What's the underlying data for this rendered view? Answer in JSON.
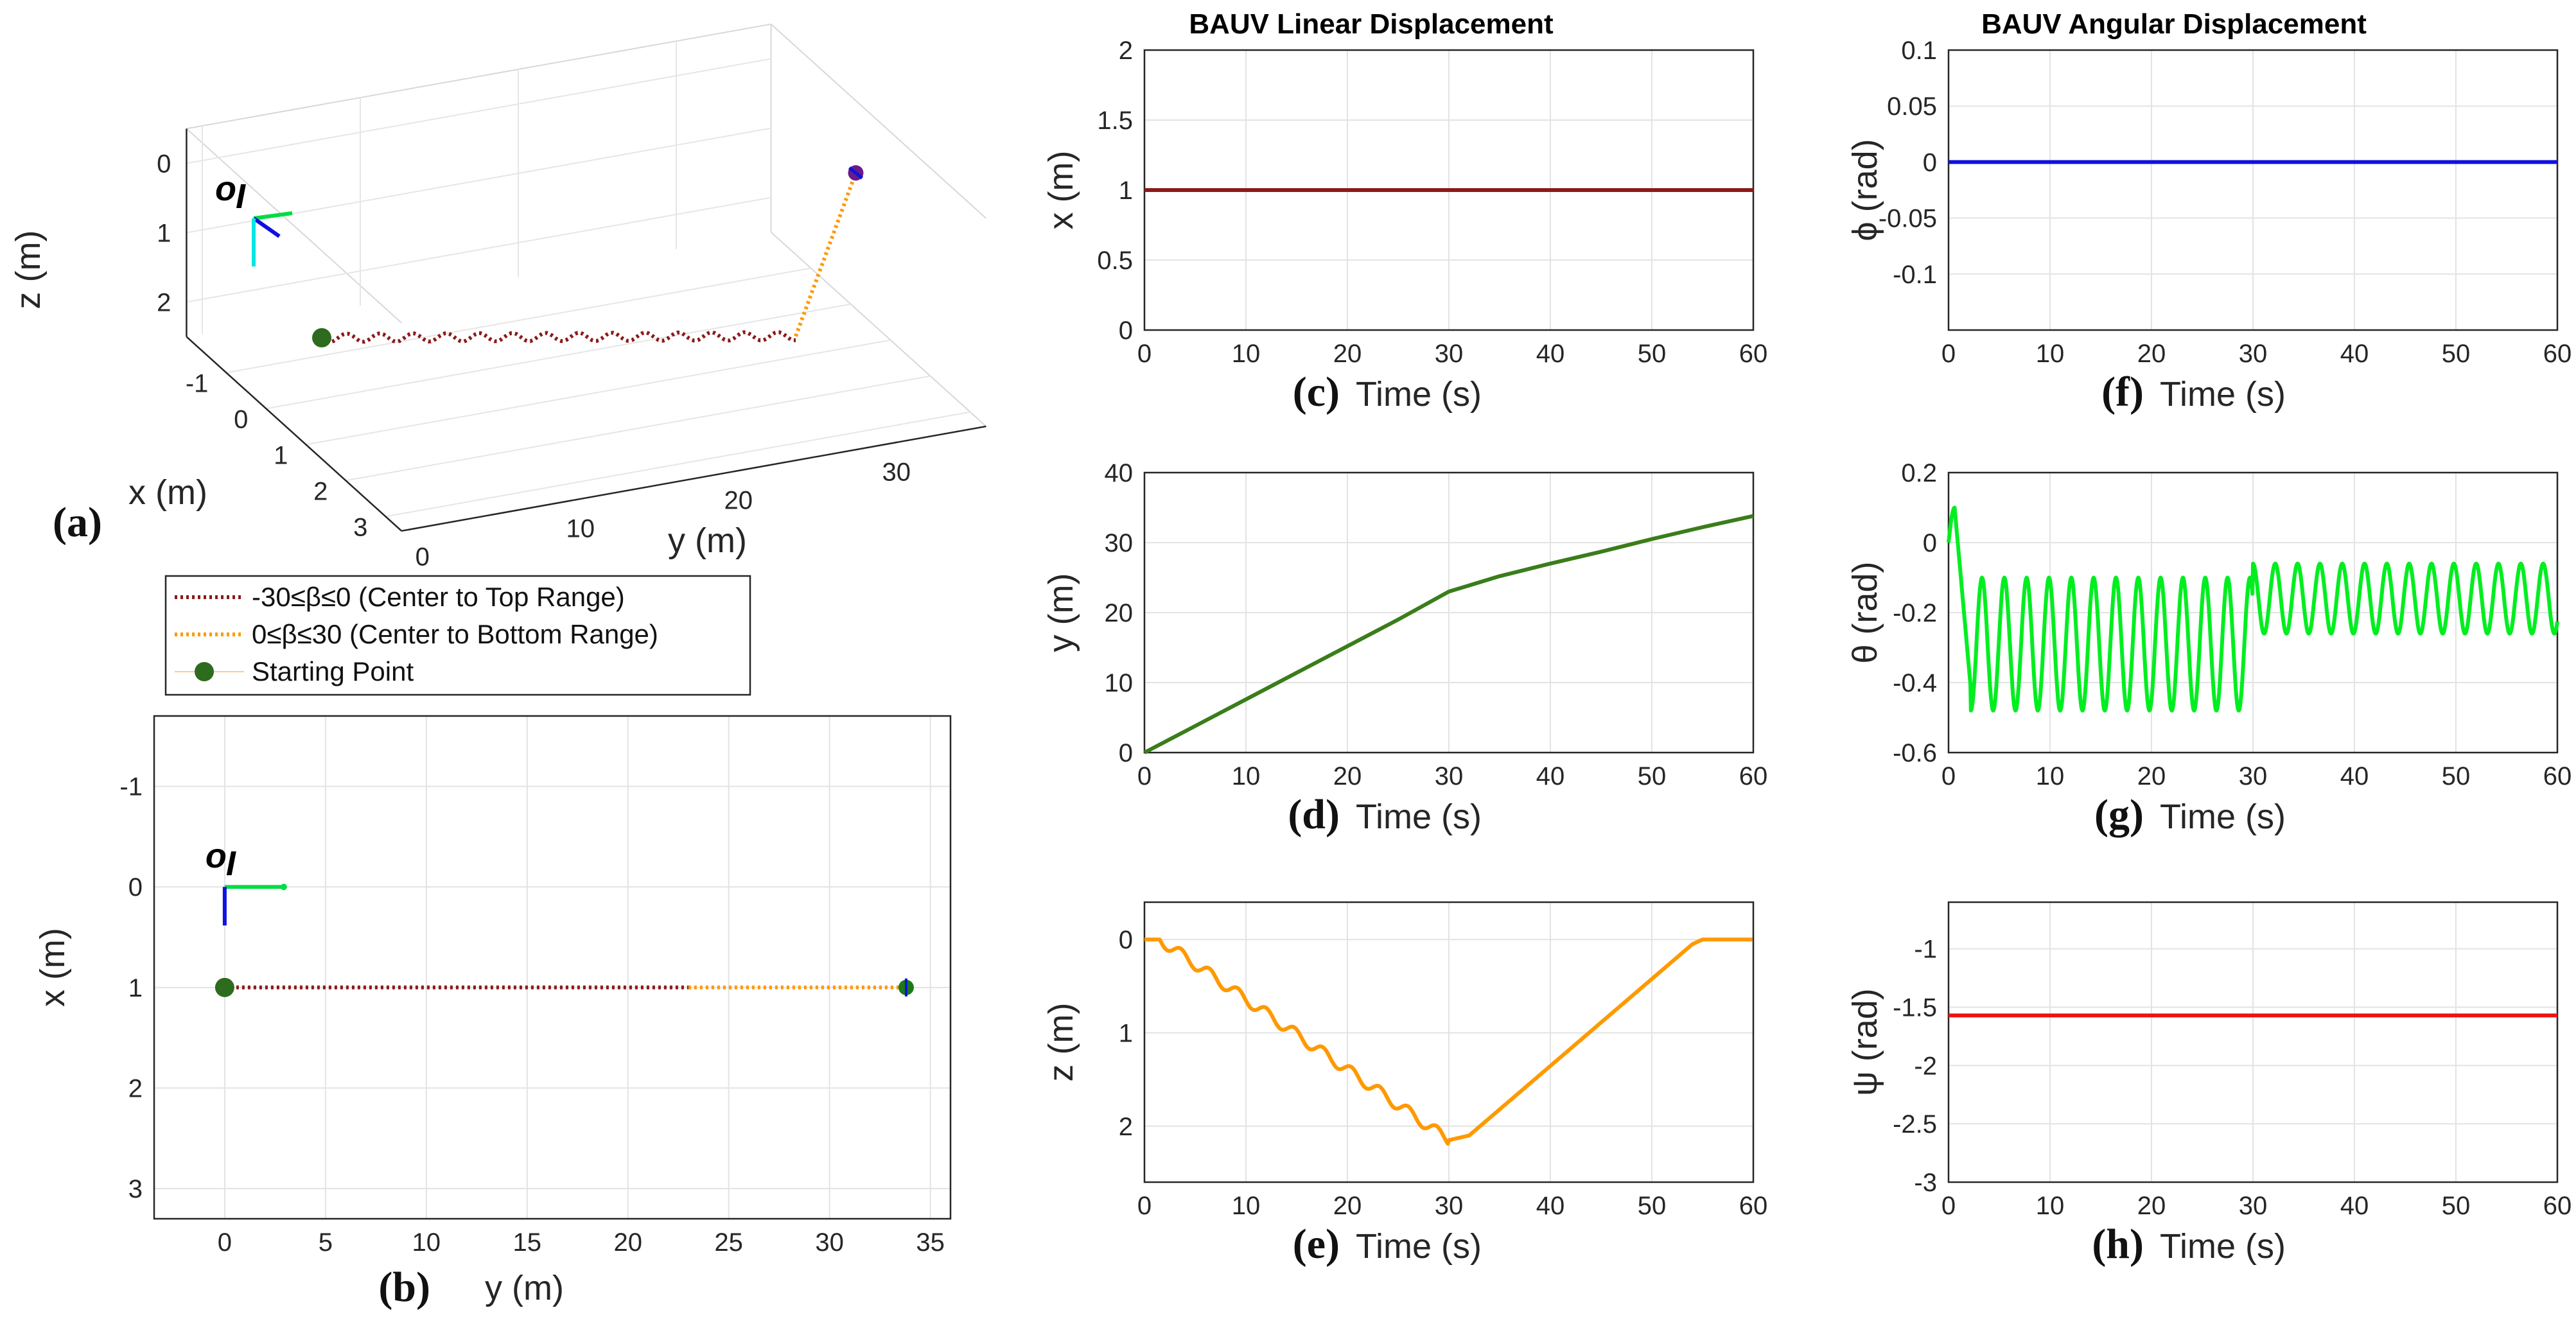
{
  "figure": {
    "title_linear": "BAUV Linear Displacement",
    "title_angular": "BAUV Angular Displacement"
  },
  "chart_data": [
    {
      "id": "a",
      "type": "line3d",
      "panel_label": "(a)",
      "xlabel": "x (m)",
      "ylabel": "y (m)",
      "zlabel": "z (m)",
      "x_ticks": [
        "-1",
        "0",
        "1",
        "2",
        "3"
      ],
      "y_ticks": [
        "0",
        "10",
        "20",
        "30"
      ],
      "z_ticks": [
        "0",
        "1",
        "2"
      ],
      "origin_label": "o",
      "origin_subscript": "I",
      "legend": [
        {
          "label": "-30≤β≤0 (Center to Top Range)",
          "color": "#8b1a1a",
          "style": "dotted"
        },
        {
          "label": "0≤β≤30 (Center to Bottom Range)",
          "color": "#ff9900",
          "style": "dotted"
        },
        {
          "label": "Starting Point",
          "color": "#2e6b1e",
          "style": "marker"
        }
      ],
      "series": [
        {
          "name": "-30≤β≤0 (Center to Top Range)",
          "color": "#8b1a1a",
          "y_range": [
            0,
            30
          ],
          "x": 1,
          "z": "wavy descent 1.0 to 2.2"
        },
        {
          "name": "0≤β≤30 (Center to Bottom Range)",
          "color": "#ff9900",
          "y_range": [
            30,
            34
          ],
          "x": 1,
          "z": "ascent 2.2 to 0"
        }
      ],
      "start_point": {
        "x": 1,
        "y": 0,
        "z": 1
      }
    },
    {
      "id": "b",
      "type": "line",
      "panel_label": "(b)",
      "xlabel": "y (m)",
      "ylabel": "x (m)",
      "xlim": [
        -3.5,
        36
      ],
      "ylim": [
        3.3,
        -1.7
      ],
      "x_ticks": [
        0,
        5,
        10,
        15,
        20,
        25,
        30,
        35
      ],
      "y_ticks": [
        -1,
        0,
        1,
        2,
        3
      ],
      "origin_label": "o",
      "origin_subscript": "I",
      "series": [
        {
          "name": "-30≤β≤0",
          "color": "#8b1a1a",
          "x": [
            0,
            23
          ],
          "y": [
            1,
            1
          ]
        },
        {
          "name": "0≤β≤30",
          "color": "#ff9900",
          "x": [
            23,
            33.8
          ],
          "y": [
            1,
            1
          ]
        }
      ],
      "start_point": {
        "x": 0,
        "y": 1
      }
    },
    {
      "id": "c",
      "type": "line",
      "panel_label": "(c)",
      "xlabel": "Time (s)",
      "ylabel": "x (m)",
      "xlim": [
        0,
        60
      ],
      "ylim": [
        0,
        2
      ],
      "x_ticks": [
        0,
        10,
        20,
        30,
        40,
        50,
        60
      ],
      "y_ticks": [
        0,
        0.5,
        1,
        1.5,
        2
      ],
      "series": [
        {
          "name": "x",
          "color": "#8b1a1a",
          "t": [
            0,
            60
          ],
          "values": [
            1,
            1
          ]
        }
      ]
    },
    {
      "id": "d",
      "type": "line",
      "panel_label": "(d)",
      "xlabel": "Time (s)",
      "ylabel": "y (m)",
      "xlim": [
        0,
        60
      ],
      "ylim": [
        0,
        40
      ],
      "x_ticks": [
        0,
        10,
        20,
        30,
        40,
        50,
        60
      ],
      "y_ticks": [
        0,
        10,
        20,
        30,
        40
      ],
      "series": [
        {
          "name": "y",
          "color": "#3a7d1a",
          "t": [
            0,
            5,
            10,
            15,
            20,
            25,
            30,
            35,
            40,
            45,
            50,
            55,
            60
          ],
          "values": [
            0,
            3.8,
            7.6,
            11.4,
            15.2,
            19,
            23,
            25.2,
            27,
            28.7,
            30.5,
            32.2,
            33.8
          ]
        }
      ]
    },
    {
      "id": "e",
      "type": "line",
      "panel_label": "(e)",
      "xlabel": "Time (s)",
      "ylabel": "z (m)",
      "xlim": [
        0,
        60
      ],
      "ylim": [
        2.6,
        -0.4
      ],
      "x_ticks": [
        0,
        10,
        20,
        30,
        40,
        50,
        60
      ],
      "y_ticks": [
        0,
        1,
        2
      ],
      "series": [
        {
          "name": "z",
          "color": "#ff9900",
          "t": [
            0,
            1.5,
            30,
            32,
            54,
            55,
            60
          ],
          "values": [
            0,
            0,
            2.15,
            2.1,
            0.05,
            0,
            0
          ]
        }
      ]
    },
    {
      "id": "f",
      "type": "line",
      "panel_label": "(f)",
      "xlabel": "Time (s)",
      "ylabel": "ϕ (rad)",
      "xlim": [
        0,
        60
      ],
      "ylim": [
        -0.15,
        0.1
      ],
      "x_ticks": [
        0,
        10,
        20,
        30,
        40,
        50,
        60
      ],
      "y_ticks": [
        -0.1,
        -0.05,
        0,
        0.05,
        0.1
      ],
      "series": [
        {
          "name": "phi",
          "color": "#1010e0",
          "t": [
            0,
            60
          ],
          "values": [
            0,
            0
          ]
        }
      ]
    },
    {
      "id": "g",
      "type": "line",
      "panel_label": "(g)",
      "xlabel": "Time (s)",
      "ylabel": "θ (rad)",
      "xlim": [
        0,
        60
      ],
      "ylim": [
        -0.6,
        0.2
      ],
      "x_ticks": [
        0,
        10,
        20,
        30,
        40,
        50,
        60
      ],
      "y_ticks": [
        -0.6,
        -0.4,
        -0.2,
        0,
        0.2
      ],
      "series": [
        {
          "name": "theta",
          "color": "#00ee20",
          "pattern": "oscillation",
          "first_half_range": [
            -0.48,
            -0.1
          ],
          "second_half_range": [
            -0.26,
            -0.06
          ],
          "switch_t": 30
        }
      ]
    },
    {
      "id": "h",
      "type": "line",
      "panel_label": "(h)",
      "xlabel": "Time (s)",
      "ylabel": "ψ (rad)",
      "xlim": [
        0,
        60
      ],
      "ylim": [
        -3,
        -0.6
      ],
      "x_ticks": [
        0,
        10,
        20,
        30,
        40,
        50,
        60
      ],
      "y_ticks": [
        -3,
        -2.5,
        -2,
        -1.5,
        -1
      ],
      "series": [
        {
          "name": "psi",
          "color": "#ee1111",
          "t": [
            0,
            60
          ],
          "values": [
            -1.5708,
            -1.5708
          ]
        }
      ]
    }
  ]
}
